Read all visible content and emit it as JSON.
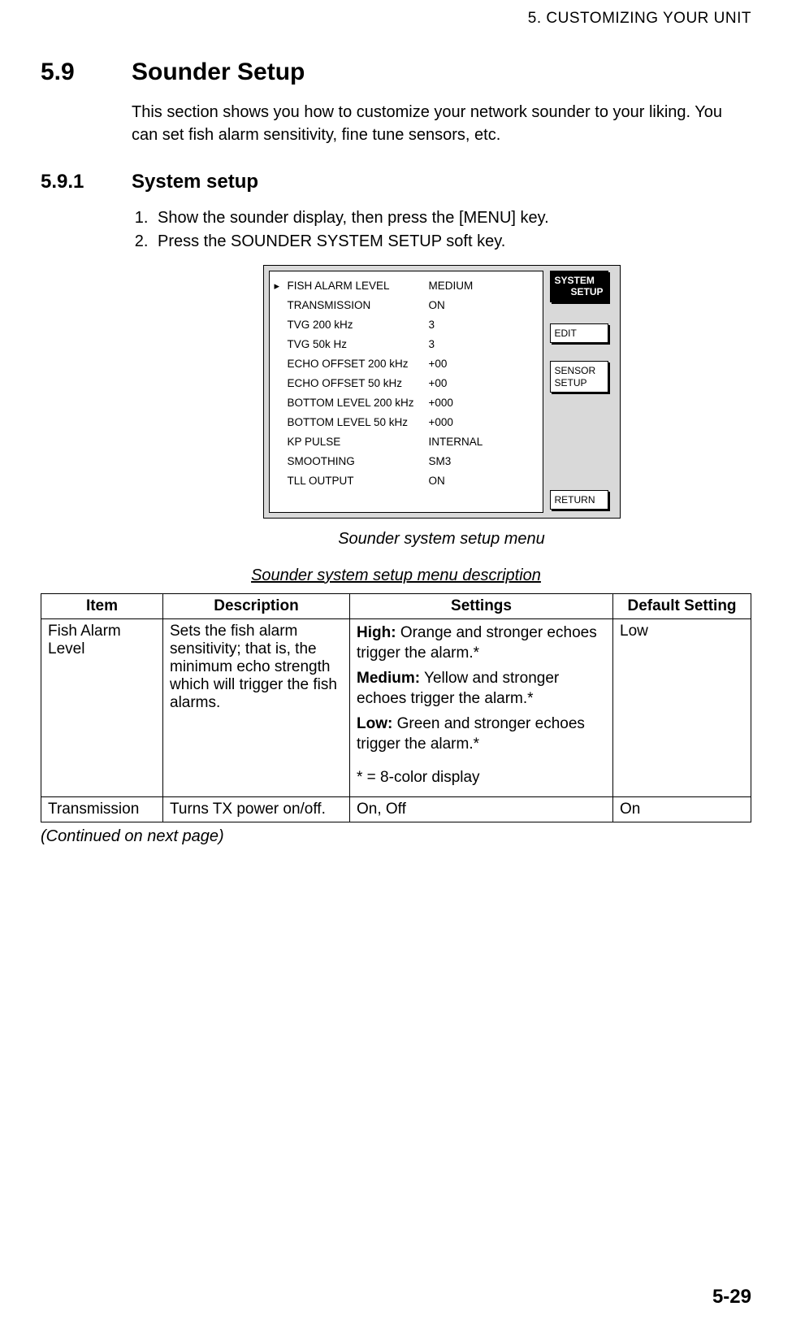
{
  "running_head": "5. CUSTOMIZING YOUR UNIT",
  "section": {
    "num": "5.9",
    "title": "Sounder Setup"
  },
  "intro": "This section shows you how to customize your network sounder to your liking. You can set fish alarm sensitivity, fine tune sensors, etc.",
  "subsection": {
    "num": "5.9.1",
    "title": "System setup"
  },
  "steps": [
    "Show the sounder display, then press the [MENU] key.",
    "Press the SOUNDER SYSTEM SETUP soft key."
  ],
  "menu": {
    "pointer_glyph": "▸",
    "rows": [
      {
        "label": "FISH ALARM LEVEL",
        "value": "MEDIUM",
        "pointed": true
      },
      {
        "label": "TRANSMISSION",
        "value": "ON",
        "pointed": false
      },
      {
        "label": "TVG 200 kHz",
        "value": "3",
        "pointed": false
      },
      {
        "label": "TVG 50k Hz",
        "value": "3",
        "pointed": false
      },
      {
        "label": "ECHO OFFSET 200 kHz",
        "value": "+00",
        "pointed": false
      },
      {
        "label": "ECHO OFFSET 50 kHz",
        "value": "+00",
        "pointed": false
      },
      {
        "label": "BOTTOM LEVEL 200 kHz",
        "value": "+000",
        "pointed": false
      },
      {
        "label": "BOTTOM LEVEL 50 kHz",
        "value": "+000",
        "pointed": false
      },
      {
        "label": "KP PULSE",
        "value": "INTERNAL",
        "pointed": false
      },
      {
        "label": "SMOOTHING",
        "value": "SM3",
        "pointed": false
      },
      {
        "label": "TLL OUTPUT",
        "value": "ON",
        "pointed": false
      }
    ],
    "softkeys": {
      "system_l1": "SYSTEM",
      "system_l2": "SETUP",
      "edit": "EDIT",
      "sensor_l1": "SENSOR",
      "sensor_l2": "SETUP",
      "return": "RETURN"
    },
    "colors": {
      "panel_bg": "#d9d9d9",
      "list_bg": "#ffffff",
      "border": "#000000",
      "system_bg": "#000000",
      "system_fg": "#ffffff"
    }
  },
  "figure_caption": "Sounder system setup menu",
  "table_caption": "Sounder system setup menu description",
  "table": {
    "headers": {
      "item": "Item",
      "desc": "Description",
      "settings": "Settings",
      "def": "Default Setting"
    },
    "rows": [
      {
        "item": "Fish Alarm Level",
        "desc": "Sets the fish alarm sensitivity; that is, the minimum echo strength which will trigger the fish alarms.",
        "settings": {
          "high_label": "High:",
          "high_text": " Orange and stronger echoes trigger the alarm.*",
          "med_label": "Medium:",
          "med_text": " Yellow and stronger echoes trigger the alarm.*",
          "low_label": "Low:",
          "low_text": " Green and stronger echoes trigger the alarm.*",
          "note": "* = 8-color display"
        },
        "def": "Low"
      },
      {
        "item": "Transmission",
        "desc": "Turns TX power on/off.",
        "settings_plain": "On, Off",
        "def": "On"
      }
    ]
  },
  "continued": "(Continued on next page)",
  "page_number": "5-29"
}
